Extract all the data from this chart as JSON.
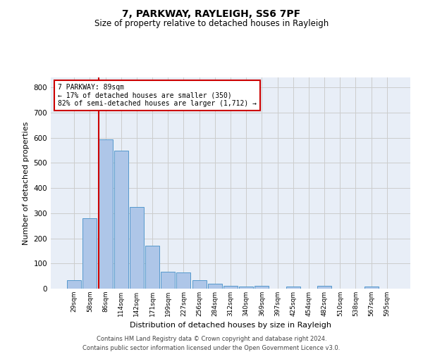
{
  "title1": "7, PARKWAY, RAYLEIGH, SS6 7PF",
  "title2": "Size of property relative to detached houses in Rayleigh",
  "xlabel": "Distribution of detached houses by size in Rayleigh",
  "ylabel": "Number of detached properties",
  "bin_labels": [
    "29sqm",
    "58sqm",
    "86sqm",
    "114sqm",
    "142sqm",
    "171sqm",
    "199sqm",
    "227sqm",
    "256sqm",
    "284sqm",
    "312sqm",
    "340sqm",
    "369sqm",
    "397sqm",
    "425sqm",
    "454sqm",
    "482sqm",
    "510sqm",
    "538sqm",
    "567sqm",
    "595sqm"
  ],
  "bar_heights": [
    35,
    280,
    595,
    550,
    325,
    170,
    68,
    65,
    35,
    20,
    12,
    8,
    10,
    0,
    8,
    0,
    10,
    0,
    0,
    8,
    0
  ],
  "bar_color": "#aec6e8",
  "bar_edge_color": "#5599cc",
  "property_bin_index": 2,
  "property_label": "7 PARKWAY: 89sqm",
  "annotation_line1": "← 17% of detached houses are smaller (350)",
  "annotation_line2": "82% of semi-detached houses are larger (1,712) →",
  "annotation_box_color": "#ffffff",
  "annotation_box_edge": "#cc0000",
  "vline_color": "#cc0000",
  "grid_color": "#cccccc",
  "background_color": "#e8eef7",
  "ylim": [
    0,
    840
  ],
  "yticks": [
    0,
    100,
    200,
    300,
    400,
    500,
    600,
    700,
    800
  ],
  "footnote1": "Contains HM Land Registry data © Crown copyright and database right 2024.",
  "footnote2": "Contains public sector information licensed under the Open Government Licence v3.0."
}
